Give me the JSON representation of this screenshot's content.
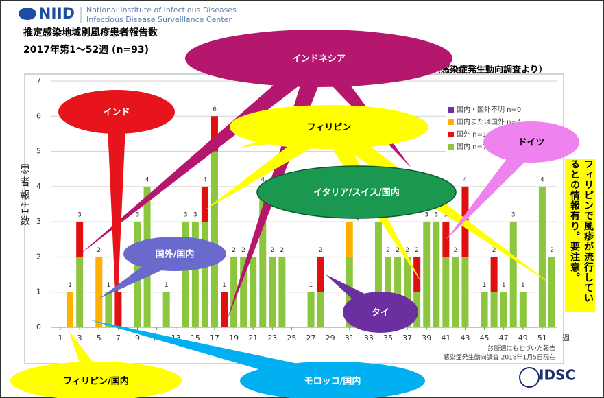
{
  "header": {
    "logo": "NIID",
    "org": "National Institute of Infectious Diseases",
    "center": "Infectious Disease Surveillance Center"
  },
  "source": "（感染症発生動向調査より）",
  "side_note": "フィリピンで風疹が流行しているとの情報有り。要注意。",
  "footer": {
    "logo": "IDSC"
  },
  "callouts": [
    "インドネシア",
    "インド",
    "フィリピン",
    "ドイツ",
    "イタリア/スイス/国内",
    "国外/国内",
    "タイ",
    "フィリピン/国内",
    "モロッコ/国内"
  ],
  "chart_data": {
    "type": "stacked_bar",
    "title": "推定感染地域別風疹患者報告数",
    "subtitle": "2017年第1～52週 (n=93)",
    "ylabel": "患者報告数",
    "xlabel": "週",
    "notes": [
      "診断週にもとづいた報告",
      "感染症発生動向調査 2018年1月5日現在"
    ],
    "x": [
      1,
      2,
      3,
      4,
      5,
      6,
      7,
      8,
      9,
      10,
      11,
      12,
      13,
      14,
      15,
      16,
      17,
      18,
      19,
      20,
      21,
      22,
      23,
      24,
      25,
      26,
      27,
      28,
      29,
      30,
      31,
      32,
      33,
      34,
      35,
      36,
      37,
      38,
      39,
      40,
      41,
      42,
      43,
      44,
      45,
      46,
      47,
      48,
      49,
      50,
      51,
      52
    ],
    "xlim": [
      0,
      52.5
    ],
    "xticks": [
      1,
      3,
      5,
      7,
      9,
      11,
      13,
      15,
      17,
      19,
      21,
      23,
      25,
      27,
      29,
      31,
      33,
      35,
      37,
      39,
      41,
      43,
      45,
      47,
      49,
      51
    ],
    "ylim": [
      0,
      7
    ],
    "yticks": [
      0,
      1,
      2,
      3,
      4,
      5,
      6,
      7
    ],
    "grid": true,
    "series": [
      {
        "name": "国内・国外不明 n=0",
        "color": "#7030a0",
        "values": [
          0,
          0,
          0,
          0,
          0,
          0,
          0,
          0,
          0,
          0,
          0,
          0,
          0,
          0,
          0,
          0,
          0,
          0,
          0,
          0,
          0,
          0,
          0,
          0,
          0,
          0,
          0,
          0,
          0,
          0,
          0,
          0,
          0,
          0,
          0,
          0,
          0,
          0,
          0,
          0,
          0,
          0,
          0,
          0,
          0,
          0,
          0,
          0,
          0,
          0,
          0,
          0
        ]
      },
      {
        "name": "国内または国外 n=4",
        "color": "#ffb000",
        "values": [
          0,
          1,
          0,
          0,
          2,
          0,
          0,
          0,
          0,
          0,
          0,
          0,
          0,
          0,
          0,
          0,
          0,
          0,
          0,
          0,
          0,
          0,
          0,
          0,
          0,
          0,
          0,
          0,
          0,
          0,
          1,
          0,
          0,
          0,
          0,
          0,
          0,
          0,
          0,
          0,
          0,
          0,
          0,
          0,
          0,
          0,
          0,
          0,
          0,
          0,
          0,
          0
        ]
      },
      {
        "name": "国外 n=11",
        "color": "#e01010",
        "values": [
          0,
          0,
          1,
          0,
          0,
          0,
          1,
          0,
          0,
          0,
          0,
          0,
          0,
          0,
          0,
          1,
          1,
          1,
          0,
          0,
          0,
          0,
          0,
          0,
          0,
          0,
          0,
          1,
          0,
          0,
          0,
          0,
          0,
          0,
          0,
          0,
          0,
          1,
          0,
          0,
          1,
          0,
          2,
          0,
          0,
          1,
          0,
          0,
          0,
          0,
          0,
          0
        ]
      },
      {
        "name": "国内 n=78",
        "color": "#8cc63f",
        "values": [
          0,
          0,
          2,
          0,
          0,
          1,
          0,
          0,
          3,
          4,
          0,
          1,
          0,
          3,
          3,
          3,
          5,
          0,
          2,
          2,
          2,
          4,
          2,
          2,
          0,
          0,
          1,
          1,
          0,
          0,
          2,
          0,
          0,
          3,
          2,
          2,
          2,
          1,
          3,
          3,
          2,
          2,
          2,
          0,
          1,
          1,
          1,
          3,
          1,
          0,
          4,
          2
        ]
      }
    ],
    "totals": [
      null,
      1,
      3,
      null,
      2,
      1,
      1,
      null,
      3,
      4,
      null,
      1,
      null,
      3,
      3,
      4,
      6,
      1,
      2,
      2,
      2,
      4,
      2,
      2,
      null,
      null,
      1,
      2,
      null,
      null,
      3,
      null,
      null,
      3,
      2,
      2,
      2,
      2,
      3,
      3,
      3,
      2,
      4,
      null,
      1,
      2,
      1,
      3,
      1,
      null,
      4,
      2
    ],
    "legend": "upper right"
  }
}
